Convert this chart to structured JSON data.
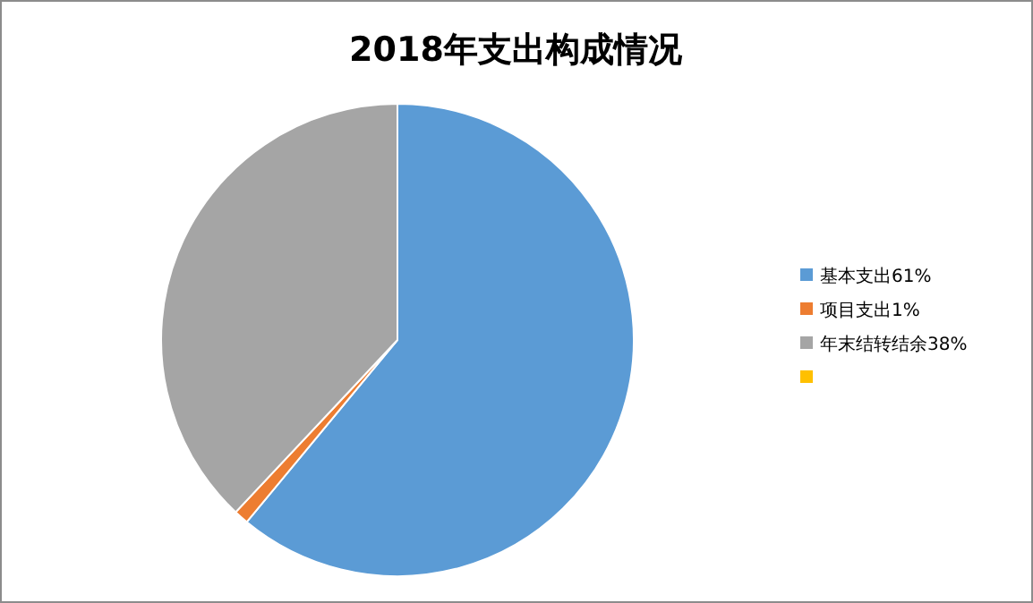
{
  "chart_data": {
    "type": "pie",
    "title": "2018年支出构成情况",
    "categories": [
      "基本支出61%",
      "项目支出1%",
      "年末结转结余38%",
      null
    ],
    "values": [
      61,
      1,
      38,
      0
    ],
    "colors": [
      "#5b9bd5",
      "#ed7d31",
      "#a5a5a5",
      "#ffc000"
    ],
    "legend": "right"
  }
}
